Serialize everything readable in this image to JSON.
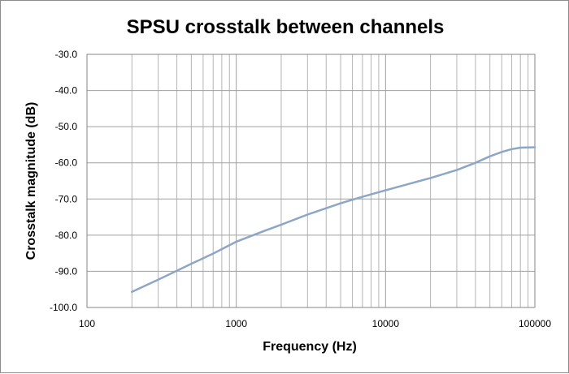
{
  "chart_data": {
    "type": "line",
    "title": "SPSU crosstalk between channels",
    "xlabel": "Frequency (Hz)",
    "ylabel": "Crosstalk magnitude (dB)",
    "x_scale": "log",
    "xlim": [
      100,
      100000
    ],
    "ylim": [
      -100,
      -30
    ],
    "x_ticks": [
      "100",
      "1000",
      "10000",
      "100000"
    ],
    "y_ticks": [
      "-30.0",
      "-40.0",
      "-50.0",
      "-60.0",
      "-70.0",
      "-80.0",
      "-90.0",
      "-100.0"
    ],
    "grid": true,
    "legend": "none",
    "line_color": "#8EA6C6",
    "series": [
      {
        "x": [
          200,
          300,
          500,
          700,
          1000,
          1500,
          2000,
          3000,
          5000,
          7000,
          10000,
          15000,
          20000,
          30000,
          40000,
          50000,
          60000,
          70000,
          80000,
          100000
        ],
        "y": [
          -95.7,
          -92.3,
          -87.9,
          -85.1,
          -81.8,
          -79.0,
          -77.1,
          -74.3,
          -71.2,
          -69.4,
          -67.6,
          -65.6,
          -64.2,
          -62.0,
          -60.0,
          -58.2,
          -57.0,
          -56.2,
          -55.8,
          -55.7
        ]
      }
    ]
  }
}
